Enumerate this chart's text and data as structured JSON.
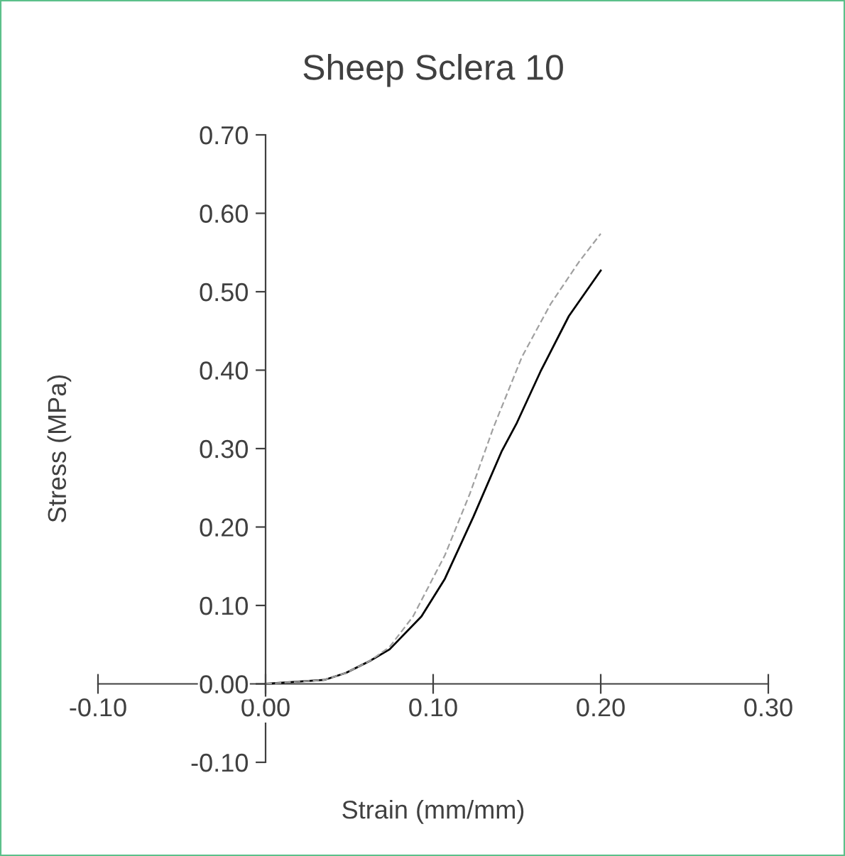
{
  "chart_data": {
    "type": "line",
    "title": "Sheep Sclera 10",
    "xlabel": "Strain (mm/mm)",
    "ylabel": "Stress (MPa)",
    "xlim": [
      -0.1,
      0.3
    ],
    "ylim": [
      -0.1,
      0.7
    ],
    "xticks": [
      {
        "value": -0.1,
        "label": "-0.10"
      },
      {
        "value": 0,
        "label": "0.00"
      },
      {
        "value": 0.1,
        "label": "0.10"
      },
      {
        "value": 0.2,
        "label": "0.20"
      },
      {
        "value": 0.3,
        "label": "0.30"
      }
    ],
    "yticks": [
      {
        "value": -0.1,
        "label": "-0.10"
      },
      {
        "value": 0,
        "label": "0.00"
      },
      {
        "value": 0.1,
        "label": "0.10"
      },
      {
        "value": 0.2,
        "label": "0.20"
      },
      {
        "value": 0.3,
        "label": "0.30"
      },
      {
        "value": 0.4,
        "label": "0.40"
      },
      {
        "value": 0.5,
        "label": "0.50"
      },
      {
        "value": 0.6,
        "label": "0.60"
      },
      {
        "value": 0.7,
        "label": "0.70"
      }
    ],
    "grid": false,
    "legend": false,
    "marker": "none",
    "series": [
      {
        "color": "#000000",
        "line_style": "solid",
        "x": [
          0,
          0.035,
          0.048,
          0.062,
          0.074,
          0.093,
          0.107,
          0.124,
          0.141,
          0.15,
          0.164,
          0.181,
          0.2
        ],
        "values": [
          0,
          0.005,
          0.014,
          0.029,
          0.044,
          0.086,
          0.134,
          0.213,
          0.297,
          0.333,
          0.398,
          0.469,
          0.527
        ]
      },
      {
        "color": "#a0a0a0",
        "line_style": "dashed",
        "x": [
          0,
          0.035,
          0.048,
          0.062,
          0.074,
          0.088,
          0.107,
          0.122,
          0.136,
          0.153,
          0.17,
          0.187,
          0.2
        ],
        "values": [
          0,
          0.005,
          0.014,
          0.029,
          0.047,
          0.086,
          0.164,
          0.243,
          0.327,
          0.417,
          0.484,
          0.538,
          0.574
        ]
      }
    ]
  }
}
